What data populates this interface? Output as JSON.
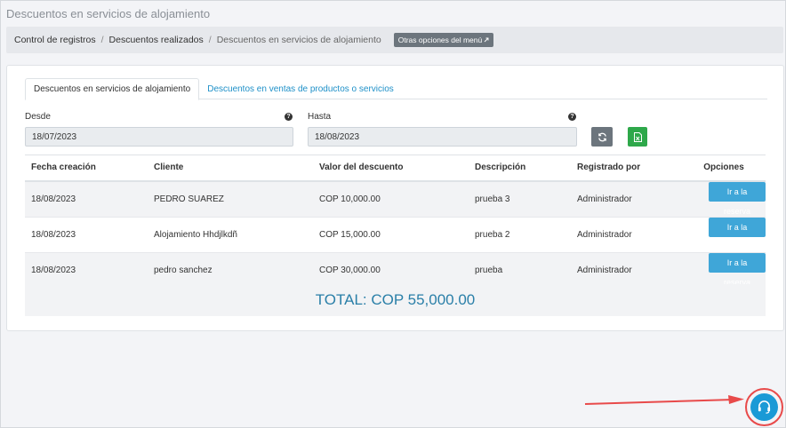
{
  "page": {
    "title": "Descuentos en servicios de alojamiento"
  },
  "breadcrumb": {
    "items": [
      "Control de registros",
      "Descuentos realizados",
      "Descuentos en servicios de alojamiento"
    ],
    "separator": "/",
    "menu_button": "Otras opciones del menú"
  },
  "tabs": [
    {
      "label": "Descuentos en servicios de alojamiento",
      "active": true
    },
    {
      "label": "Descuentos en ventas de productos o servicios",
      "active": false
    }
  ],
  "filters": {
    "from_label": "Desde",
    "from_value": "18/07/2023",
    "to_label": "Hasta",
    "to_value": "18/08/2023",
    "help_glyph": "?"
  },
  "table": {
    "headers": [
      "Fecha creación",
      "Cliente",
      "Valor del descuento",
      "Descripción",
      "Registrado por",
      "Opciones"
    ],
    "rows": [
      {
        "fecha": "18/08/2023",
        "cliente": "PEDRO SUAREZ",
        "valor": "COP 10,000.00",
        "descripcion": "prueba 3",
        "registrado": "Administrador",
        "accion": "Ir a la reserva"
      },
      {
        "fecha": "18/08/2023",
        "cliente": "Alojamiento Hhdjlkdñ",
        "valor": "COP 15,000.00",
        "descripcion": "prueba 2",
        "registrado": "Administrador",
        "accion": "Ir a la reserva"
      },
      {
        "fecha": "18/08/2023",
        "cliente": "pedro sanchez",
        "valor": "COP 30,000.00",
        "descripcion": "prueba",
        "registrado": "Administrador",
        "accion": "Ir a la reserva"
      }
    ]
  },
  "total": "TOTAL: COP 55,000.00",
  "icons": {
    "refresh": "refresh-icon",
    "excel": "excel-icon",
    "help": "question-icon",
    "support": "headset-icon",
    "arrow": "arrow-annotation"
  },
  "colors": {
    "accent": "#1a9ad6",
    "reserve_button": "#3fa6d8",
    "excel": "#2ea84a",
    "refresh": "#6c757d",
    "annotation": "#e84a4a",
    "total_text": "#2a7fa8"
  }
}
